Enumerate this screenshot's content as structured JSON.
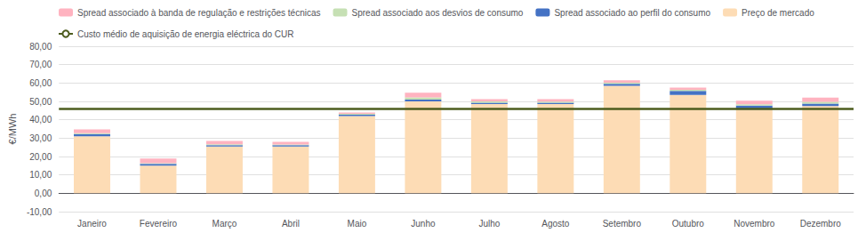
{
  "chart_data": {
    "type": "bar",
    "stacked": true,
    "ylabel": "€/MWh",
    "categories": [
      "Janeiro",
      "Fevereiro",
      "Março",
      "Abril",
      "Maio",
      "Junho",
      "Julho",
      "Agosto",
      "Setembro",
      "Outubro",
      "Novembro",
      "Dezembro"
    ],
    "series": [
      {
        "name": "Preço de mercado",
        "color": "#FDDCB5",
        "values": [
          31.0,
          15.0,
          25.5,
          25.5,
          42.0,
          50.0,
          48.5,
          48.5,
          58.5,
          53.5,
          45.5,
          47.5
        ]
      },
      {
        "name": "Spread associado ao perfil do consumo",
        "color": "#4472C4",
        "values": [
          1.2,
          1.0,
          0.7,
          0.7,
          0.7,
          1.0,
          0.8,
          0.8,
          1.0,
          2.2,
          2.2,
          1.3
        ]
      },
      {
        "name": "Spread associado aos desvios de consumo",
        "color": "#C6E0B4",
        "values": [
          0.5,
          0.4,
          0.5,
          0.3,
          0.5,
          1.2,
          0.7,
          0.6,
          0.7,
          0.6,
          0.7,
          1.0
        ]
      },
      {
        "name": "Spread associado à banda de regulação e restrições técnicas",
        "color": "#FFB3C0",
        "values": [
          2.0,
          2.5,
          1.8,
          1.5,
          0.8,
          2.5,
          1.2,
          1.3,
          1.3,
          1.2,
          2.0,
          2.2
        ]
      },
      {
        "name": "Custo médio de aquisição de energia eléctrica do CUR",
        "type": "hline",
        "color": "#4D5C1E",
        "value": 46.0
      }
    ],
    "ylim": [
      -10,
      80
    ],
    "yticks": [
      {
        "value": -10,
        "label": "-10,00"
      },
      {
        "value": 0,
        "label": "0,00"
      },
      {
        "value": 10,
        "label": "10,00"
      },
      {
        "value": 20,
        "label": "20,00"
      },
      {
        "value": 30,
        "label": "30,00"
      },
      {
        "value": 40,
        "label": "40,00"
      },
      {
        "value": 50,
        "label": "50,00"
      },
      {
        "value": 60,
        "label": "60,00"
      },
      {
        "value": 70,
        "label": "70,00"
      },
      {
        "value": 80,
        "label": "80,00"
      }
    ],
    "grid": true,
    "legend": "upper left"
  }
}
